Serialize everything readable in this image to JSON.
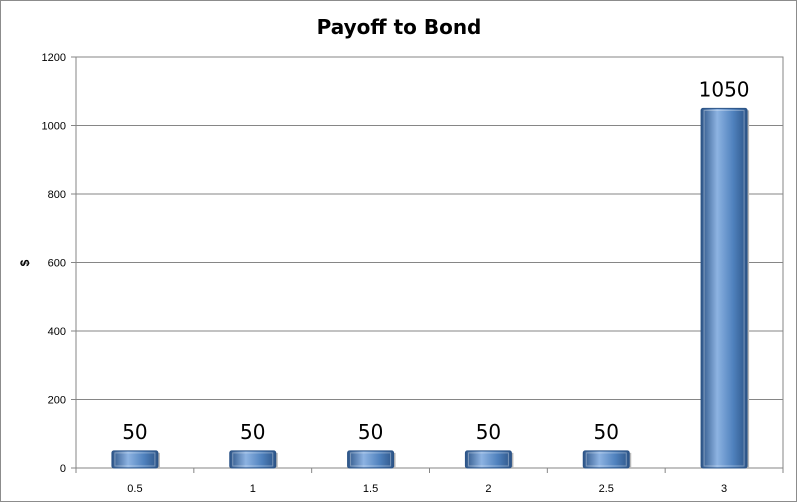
{
  "chart_data": {
    "type": "bar",
    "title": "Payoff to Bond",
    "xlabel": "",
    "ylabel": "$",
    "categories": [
      "0.5",
      "1",
      "1.5",
      "2",
      "2.5",
      "3"
    ],
    "values": [
      50,
      50,
      50,
      50,
      50,
      1050
    ],
    "data_labels": [
      "50",
      "50",
      "50",
      "50",
      "50",
      "1050"
    ],
    "yticks": [
      "0",
      "200",
      "400",
      "600",
      "800",
      "1000",
      "1200"
    ],
    "ylim": [
      0,
      1200
    ],
    "grid": true,
    "legend": "none",
    "colors": {
      "bar": "#4f81bd",
      "bar_light": "#8db3e2",
      "bar_dark": "#2c5487",
      "grid": "#868686",
      "frame": "#868686"
    }
  }
}
